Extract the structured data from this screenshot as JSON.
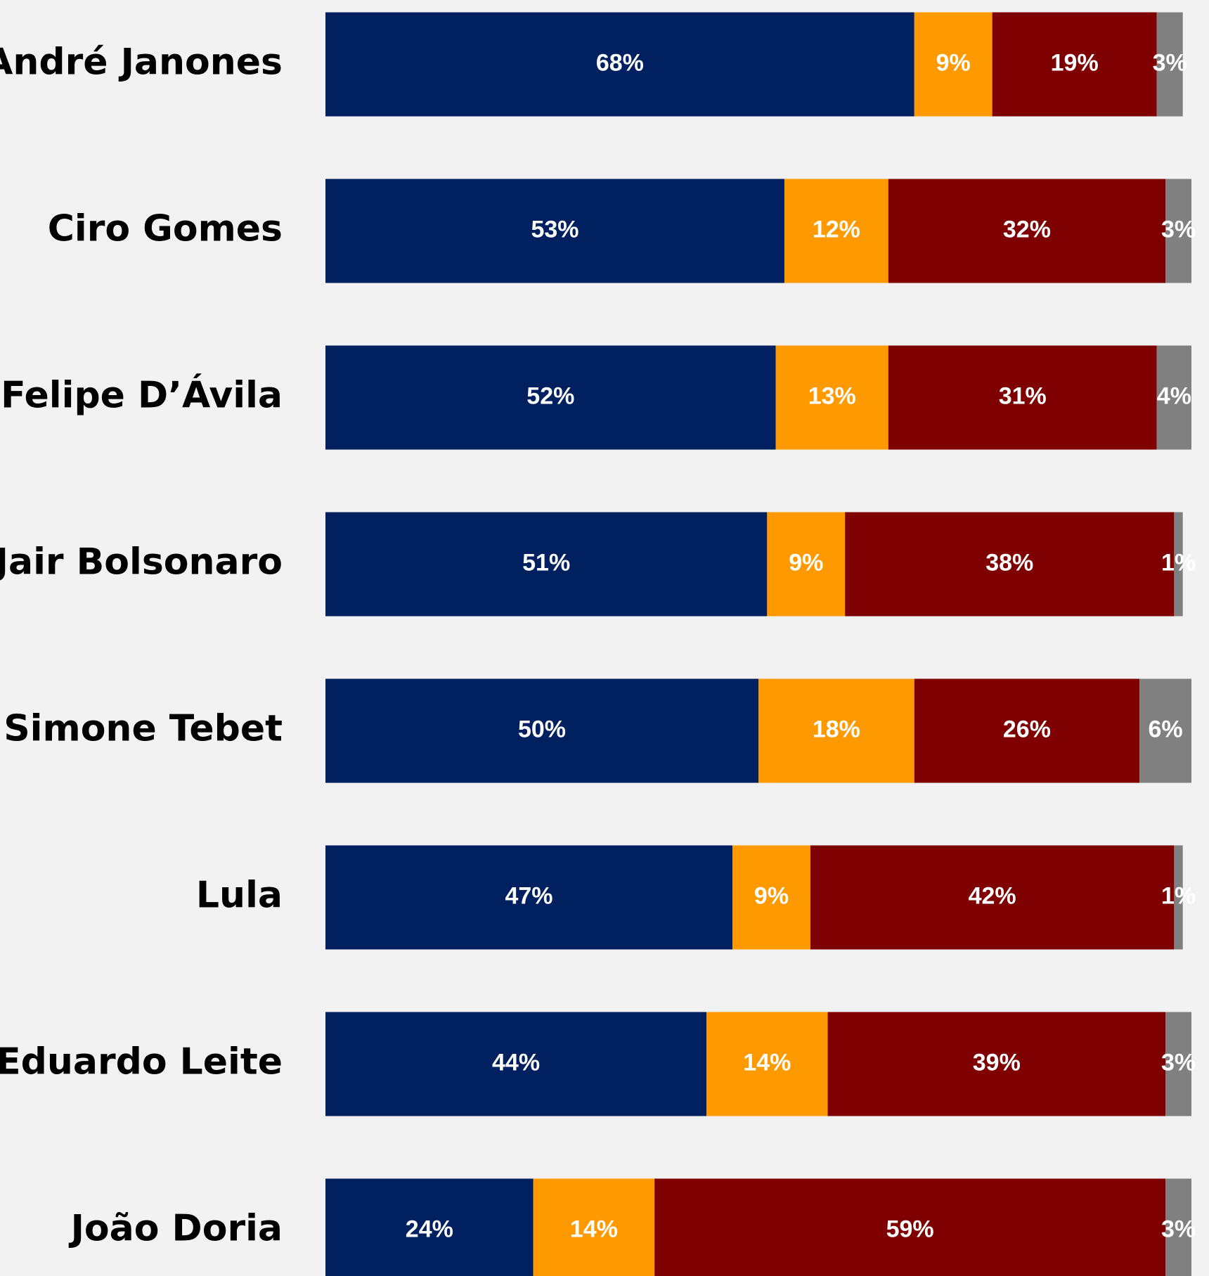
{
  "chart_data": {
    "type": "stacked-barh",
    "categories": [
      "André Janones",
      "Ciro Gomes",
      "Felipe D’Ávila",
      "Jair Bolsonaro",
      "Simone Tebet",
      "Lula",
      "Eduardo Leite",
      "João Doria"
    ],
    "series": [
      {
        "color": "#002060",
        "values": [
          68,
          53,
          52,
          51,
          50,
          47,
          44,
          24
        ],
        "value_labels": [
          "68%",
          "53%",
          "52%",
          "51%",
          "50%",
          "47%",
          "44%",
          "24%"
        ]
      },
      {
        "color": "#ff9900",
        "values": [
          9,
          12,
          13,
          9,
          18,
          9,
          14,
          14
        ],
        "value_labels": [
          "9%",
          "12%",
          "13%",
          "9%",
          "18%",
          "9%",
          "14%",
          "14%"
        ]
      },
      {
        "color": "#7f0000",
        "values": [
          19,
          32,
          31,
          38,
          26,
          42,
          39,
          59
        ],
        "value_labels": [
          "19%",
          "32%",
          "31%",
          "38%",
          "26%",
          "42%",
          "39%",
          "59%"
        ]
      },
      {
        "color": "#808080",
        "values": [
          3,
          3,
          4,
          1,
          6,
          1,
          3,
          3
        ],
        "value_labels": [
          "3%",
          "3%",
          "4%",
          "1%",
          "6%",
          "1%",
          "3%",
          "3%"
        ]
      }
    ],
    "xlim": [
      0,
      100
    ]
  }
}
